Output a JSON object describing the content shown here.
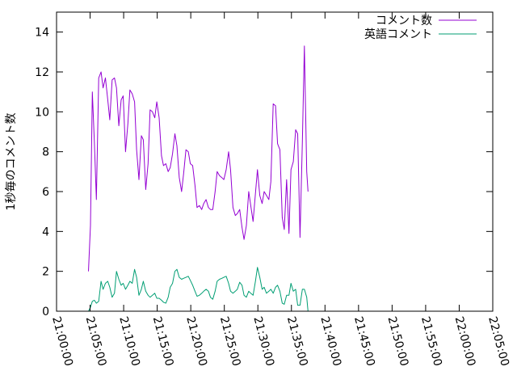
{
  "chart_data": {
    "type": "line",
    "title": "",
    "xlabel": "",
    "ylabel": "1秒毎のコメント数",
    "legend_position": "top-right",
    "grid": false,
    "xlim": [
      "21:00:00",
      "22:05:00"
    ],
    "ylim": [
      0,
      15
    ],
    "x_ticks": [
      "21:00:00",
      "21:05:00",
      "21:10:00",
      "21:15:00",
      "21:20:00",
      "21:25:00",
      "21:30:00",
      "21:35:00",
      "21:40:00",
      "21:45:00",
      "21:50:00",
      "21:55:00",
      "22:00:00",
      "22:05:00"
    ],
    "y_ticks": [
      0,
      2,
      4,
      6,
      8,
      10,
      12,
      14
    ],
    "series": [
      {
        "name": "コメント数",
        "color": "#9400d3",
        "points": [
          [
            "21:04:45",
            2.0
          ],
          [
            "21:05:03",
            4.3
          ],
          [
            "21:05:20",
            11.0
          ],
          [
            "21:05:38",
            8.5
          ],
          [
            "21:05:56",
            5.6
          ],
          [
            "21:06:17",
            11.7
          ],
          [
            "21:06:38",
            12.0
          ],
          [
            "21:06:56",
            11.2
          ],
          [
            "21:07:17",
            11.7
          ],
          [
            "21:07:38",
            10.6
          ],
          [
            "21:07:56",
            9.6
          ],
          [
            "21:08:17",
            11.6
          ],
          [
            "21:08:38",
            11.7
          ],
          [
            "21:08:56",
            11.2
          ],
          [
            "21:09:17",
            9.3
          ],
          [
            "21:09:38",
            10.6
          ],
          [
            "21:09:56",
            10.8
          ],
          [
            "21:10:17",
            8.0
          ],
          [
            "21:10:38",
            9.4
          ],
          [
            "21:10:56",
            11.1
          ],
          [
            "21:11:17",
            10.9
          ],
          [
            "21:11:38",
            10.5
          ],
          [
            "21:11:56",
            8.1
          ],
          [
            "21:12:17",
            6.6
          ],
          [
            "21:12:38",
            8.8
          ],
          [
            "21:12:56",
            8.6
          ],
          [
            "21:13:17",
            6.1
          ],
          [
            "21:13:38",
            7.4
          ],
          [
            "21:13:56",
            10.1
          ],
          [
            "21:14:17",
            10.0
          ],
          [
            "21:14:38",
            9.7
          ],
          [
            "21:14:56",
            10.5
          ],
          [
            "21:15:17",
            9.7
          ],
          [
            "21:15:38",
            7.8
          ],
          [
            "21:15:56",
            7.3
          ],
          [
            "21:16:17",
            7.4
          ],
          [
            "21:16:38",
            7.0
          ],
          [
            "21:16:56",
            7.2
          ],
          [
            "21:17:17",
            7.9
          ],
          [
            "21:17:38",
            8.9
          ],
          [
            "21:17:56",
            8.3
          ],
          [
            "21:18:17",
            6.7
          ],
          [
            "21:18:38",
            6.0
          ],
          [
            "21:18:56",
            6.9
          ],
          [
            "21:19:17",
            8.1
          ],
          [
            "21:19:38",
            8.0
          ],
          [
            "21:19:56",
            7.4
          ],
          [
            "21:20:17",
            7.3
          ],
          [
            "21:20:38",
            6.3
          ],
          [
            "21:20:56",
            5.2
          ],
          [
            "21:21:17",
            5.3
          ],
          [
            "21:21:38",
            5.1
          ],
          [
            "21:21:56",
            5.4
          ],
          [
            "21:22:17",
            5.6
          ],
          [
            "21:22:38",
            5.2
          ],
          [
            "21:22:56",
            5.1
          ],
          [
            "21:23:17",
            5.1
          ],
          [
            "21:23:38",
            6.0
          ],
          [
            "21:23:56",
            7.0
          ],
          [
            "21:24:17",
            6.8
          ],
          [
            "21:24:38",
            6.7
          ],
          [
            "21:24:56",
            6.6
          ],
          [
            "21:25:17",
            7.1
          ],
          [
            "21:25:38",
            8.0
          ],
          [
            "21:25:56",
            7.1
          ],
          [
            "21:26:17",
            5.2
          ],
          [
            "21:26:38",
            4.8
          ],
          [
            "21:26:56",
            4.9
          ],
          [
            "21:27:17",
            5.1
          ],
          [
            "21:27:38",
            4.2
          ],
          [
            "21:27:56",
            3.6
          ],
          [
            "21:28:17",
            4.3
          ],
          [
            "21:28:38",
            6.0
          ],
          [
            "21:28:56",
            5.3
          ],
          [
            "21:29:17",
            4.5
          ],
          [
            "21:29:38",
            5.9
          ],
          [
            "21:29:56",
            7.1
          ],
          [
            "21:30:17",
            5.8
          ],
          [
            "21:30:38",
            5.4
          ],
          [
            "21:30:56",
            6.0
          ],
          [
            "21:31:17",
            5.8
          ],
          [
            "21:31:38",
            5.6
          ],
          [
            "21:31:56",
            6.5
          ],
          [
            "21:32:17",
            10.4
          ],
          [
            "21:32:38",
            10.3
          ],
          [
            "21:32:56",
            8.4
          ],
          [
            "21:33:17",
            8.1
          ],
          [
            "21:33:38",
            4.7
          ],
          [
            "21:33:56",
            4.1
          ],
          [
            "21:34:17",
            6.6
          ],
          [
            "21:34:38",
            3.9
          ],
          [
            "21:34:56",
            7.1
          ],
          [
            "21:35:17",
            7.5
          ],
          [
            "21:35:38",
            9.1
          ],
          [
            "21:35:56",
            8.9
          ],
          [
            "21:36:17",
            3.7
          ],
          [
            "21:36:38",
            8.5
          ],
          [
            "21:36:56",
            13.3
          ],
          [
            "21:37:17",
            7.0
          ],
          [
            "21:37:28",
            6.0
          ]
        ]
      },
      {
        "name": "英語コメント",
        "color": "#009e73",
        "points": [
          [
            "21:04:45",
            0.0
          ],
          [
            "21:05:03",
            0.2
          ],
          [
            "21:05:20",
            0.5
          ],
          [
            "21:05:38",
            0.55
          ],
          [
            "21:05:56",
            0.4
          ],
          [
            "21:06:17",
            0.5
          ],
          [
            "21:06:38",
            1.5
          ],
          [
            "21:06:56",
            1.1
          ],
          [
            "21:07:17",
            1.4
          ],
          [
            "21:07:38",
            1.5
          ],
          [
            "21:07:56",
            1.2
          ],
          [
            "21:08:17",
            0.7
          ],
          [
            "21:08:38",
            0.9
          ],
          [
            "21:08:56",
            2.0
          ],
          [
            "21:09:17",
            1.6
          ],
          [
            "21:09:38",
            1.3
          ],
          [
            "21:09:56",
            1.4
          ],
          [
            "21:10:17",
            1.1
          ],
          [
            "21:10:38",
            1.3
          ],
          [
            "21:10:56",
            1.5
          ],
          [
            "21:11:17",
            1.4
          ],
          [
            "21:11:38",
            2.1
          ],
          [
            "21:11:56",
            1.7
          ],
          [
            "21:12:17",
            0.8
          ],
          [
            "21:12:38",
            1.1
          ],
          [
            "21:12:56",
            1.5
          ],
          [
            "21:13:17",
            1.0
          ],
          [
            "21:13:38",
            0.8
          ],
          [
            "21:13:56",
            0.7
          ],
          [
            "21:14:17",
            0.8
          ],
          [
            "21:14:38",
            0.9
          ],
          [
            "21:14:56",
            0.65
          ],
          [
            "21:15:17",
            0.65
          ],
          [
            "21:15:38",
            0.55
          ],
          [
            "21:15:56",
            0.45
          ],
          [
            "21:16:17",
            0.4
          ],
          [
            "21:16:38",
            0.7
          ],
          [
            "21:16:56",
            1.2
          ],
          [
            "21:17:17",
            1.4
          ],
          [
            "21:17:38",
            2.0
          ],
          [
            "21:17:56",
            2.1
          ],
          [
            "21:18:17",
            1.7
          ],
          [
            "21:18:38",
            1.6
          ],
          [
            "21:18:56",
            1.65
          ],
          [
            "21:19:17",
            1.7
          ],
          [
            "21:19:38",
            1.75
          ],
          [
            "21:19:56",
            1.55
          ],
          [
            "21:20:17",
            1.3
          ],
          [
            "21:20:38",
            1.0
          ],
          [
            "21:20:56",
            0.75
          ],
          [
            "21:21:17",
            0.8
          ],
          [
            "21:21:38",
            0.9
          ],
          [
            "21:21:56",
            1.0
          ],
          [
            "21:22:17",
            1.1
          ],
          [
            "21:22:38",
            1.0
          ],
          [
            "21:22:56",
            0.7
          ],
          [
            "21:23:17",
            0.6
          ],
          [
            "21:23:38",
            1.0
          ],
          [
            "21:23:56",
            1.5
          ],
          [
            "21:24:17",
            1.6
          ],
          [
            "21:24:38",
            1.65
          ],
          [
            "21:24:56",
            1.7
          ],
          [
            "21:25:17",
            1.75
          ],
          [
            "21:25:38",
            1.4
          ],
          [
            "21:25:56",
            1.0
          ],
          [
            "21:26:17",
            0.9
          ],
          [
            "21:26:38",
            1.0
          ],
          [
            "21:26:56",
            1.1
          ],
          [
            "21:27:17",
            1.45
          ],
          [
            "21:27:38",
            1.3
          ],
          [
            "21:27:56",
            0.8
          ],
          [
            "21:28:17",
            0.7
          ],
          [
            "21:28:38",
            1.0
          ],
          [
            "21:28:56",
            0.9
          ],
          [
            "21:29:17",
            0.8
          ],
          [
            "21:29:38",
            1.5
          ],
          [
            "21:29:56",
            2.2
          ],
          [
            "21:30:17",
            1.7
          ],
          [
            "21:30:38",
            1.1
          ],
          [
            "21:30:56",
            1.2
          ],
          [
            "21:31:17",
            0.9
          ],
          [
            "21:31:38",
            1.0
          ],
          [
            "21:31:56",
            1.1
          ],
          [
            "21:32:17",
            0.9
          ],
          [
            "21:32:38",
            1.2
          ],
          [
            "21:32:56",
            1.3
          ],
          [
            "21:33:17",
            1.0
          ],
          [
            "21:33:38",
            0.4
          ],
          [
            "21:33:56",
            0.35
          ],
          [
            "21:34:17",
            0.8
          ],
          [
            "21:34:38",
            0.8
          ],
          [
            "21:34:56",
            1.4
          ],
          [
            "21:35:17",
            1.0
          ],
          [
            "21:35:38",
            1.1
          ],
          [
            "21:35:56",
            0.3
          ],
          [
            "21:36:17",
            0.3
          ],
          [
            "21:36:38",
            1.1
          ],
          [
            "21:36:56",
            1.1
          ],
          [
            "21:37:17",
            0.7
          ],
          [
            "21:37:28",
            0.0
          ]
        ]
      }
    ]
  }
}
